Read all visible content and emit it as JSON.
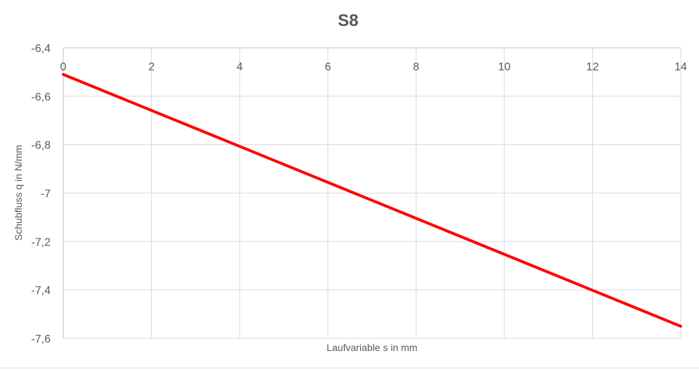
{
  "chart_data": {
    "type": "line",
    "title": "S8",
    "xlabel": "Laufvariable s in mm",
    "ylabel": "Schubfluss q in N/mm",
    "xlim": [
      0,
      14
    ],
    "ylim": [
      -7.6,
      -6.4
    ],
    "x_ticks": [
      0,
      2,
      4,
      6,
      8,
      10,
      12,
      14
    ],
    "x_tick_labels": [
      "0",
      "2",
      "4",
      "6",
      "8",
      "10",
      "12",
      "14"
    ],
    "y_ticks": [
      -6.4,
      -6.6,
      -6.8,
      -7.0,
      -7.2,
      -7.4,
      -7.6
    ],
    "y_tick_labels": [
      "-6,4",
      "-6,6",
      "-6,8",
      "-7",
      "-7,2",
      "-7,4",
      "-7,6"
    ],
    "x_axis_position": "top",
    "grid": true,
    "legend": "none",
    "series": [
      {
        "color": "#ff0000",
        "x": [
          0,
          14
        ],
        "y": [
          -6.51,
          -7.55
        ]
      }
    ]
  }
}
